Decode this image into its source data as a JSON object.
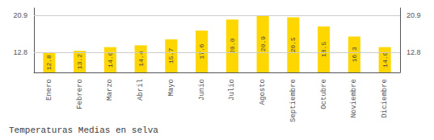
{
  "chart_data": {
    "type": "bar",
    "title": "Temperaturas Medias en selva",
    "categories": [
      "Enero",
      "Febrero",
      "Marzo",
      "Abril",
      "Mayo",
      "Junio",
      "Julio",
      "Agosto",
      "Septiembre",
      "Octubre",
      "Noviembre",
      "Diciembre"
    ],
    "values": [
      12.8,
      13.2,
      14.0,
      14.4,
      15.7,
      17.6,
      20.0,
      20.9,
      20.5,
      18.5,
      16.3,
      14.0
    ],
    "value_labels": [
      "12.8",
      "13.2",
      "14.0",
      "14.4",
      "15.7",
      "17.6",
      "20.0",
      "20.9",
      "20.5",
      "18.5",
      "16.3",
      "14.0"
    ],
    "data_labels": true,
    "color": "#FFD700",
    "ylim": [
      8.5,
      22.5
    ],
    "yticks": [
      12.8,
      20.9
    ],
    "y2lim": [
      8.5,
      22.5
    ],
    "y2ticks": [
      12.8,
      20.9
    ],
    "grid": true
  }
}
